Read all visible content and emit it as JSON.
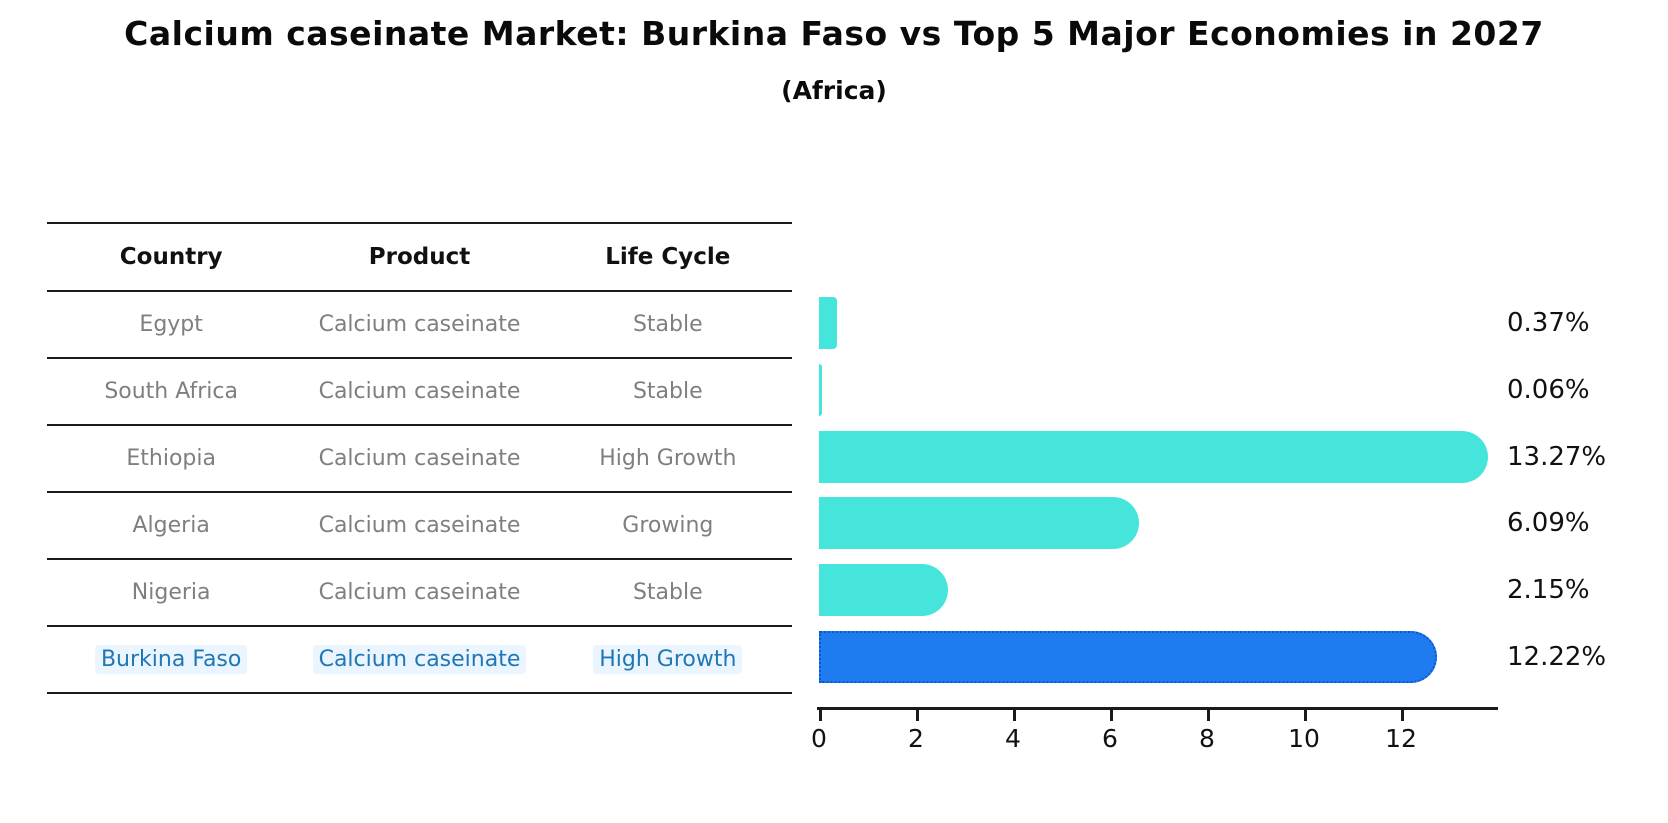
{
  "title": "Calcium caseinate Market: Burkina Faso vs Top 5 Major Economies in 2027",
  "subtitle": "(Africa)",
  "colors": {
    "bar_teal": "#45E5DC",
    "bar_blue": "#1E7BF0",
    "bar_blue_border": "#0A58D0",
    "table_text_gray": "#7f7f7f",
    "highlight_text_blue": "#1f77b4",
    "line_black": "#1a1a1a"
  },
  "table": {
    "headers": [
      "Country",
      "Product",
      "Life Cycle"
    ],
    "rows": [
      {
        "country": "Egypt",
        "product": "Calcium caseinate",
        "life_cycle": "Stable",
        "highlight": false
      },
      {
        "country": "South Africa",
        "product": "Calcium caseinate",
        "life_cycle": "Stable",
        "highlight": false
      },
      {
        "country": "Ethiopia",
        "product": "Calcium caseinate",
        "life_cycle": "High Growth",
        "highlight": false
      },
      {
        "country": "Algeria",
        "product": "Calcium caseinate",
        "life_cycle": "Growing",
        "highlight": false
      },
      {
        "country": "Nigeria",
        "product": "Calcium caseinate",
        "life_cycle": "Stable",
        "highlight": false
      },
      {
        "country": "Burkina Faso",
        "product": "Calcium caseinate",
        "life_cycle": "High Growth",
        "highlight": true
      }
    ]
  },
  "chart_data": {
    "type": "bar",
    "orientation": "horizontal",
    "title": "Calcium caseinate Market: Burkina Faso vs Top 5 Major Economies in 2027",
    "subtitle": "(Africa)",
    "categories": [
      "Egypt",
      "South Africa",
      "Ethiopia",
      "Algeria",
      "Nigeria",
      "Burkina Faso"
    ],
    "values": [
      0.37,
      0.06,
      13.27,
      6.09,
      2.15,
      12.22
    ],
    "value_labels": [
      "0.37%",
      "0.06%",
      "13.27%",
      "6.09%",
      "2.15%",
      "12.22%"
    ],
    "highlight_index": 5,
    "xlabel": "",
    "ylabel": "",
    "xlim": [
      0,
      13.9
    ],
    "xticks": [
      "0",
      "2",
      "4",
      "6",
      "8",
      "10",
      "12"
    ],
    "grid": false,
    "legend": false
  }
}
